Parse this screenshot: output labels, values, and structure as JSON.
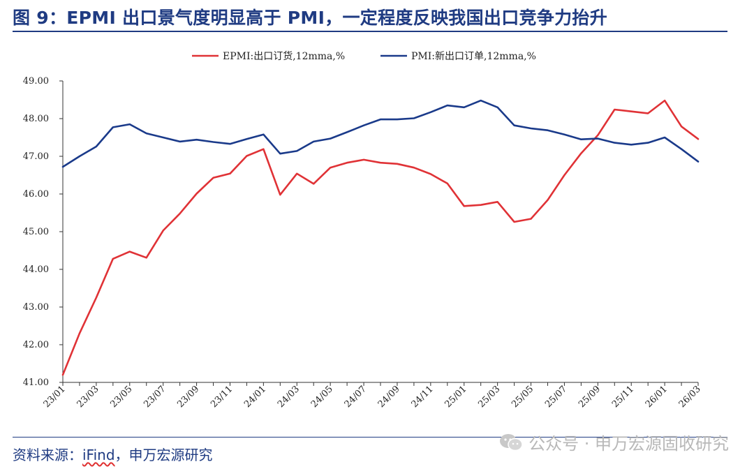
{
  "title": "图 9：EPMI 出口景气度明显高于 PMI，一定程度反映我国出口竞争力抬升",
  "source": {
    "prefix": "资料来源：",
    "ifind": "iFind",
    "suffix": "，申万宏源研究"
  },
  "watermark": "公众号 · 申万宏源固收研究",
  "colors": {
    "title": "#1f3b82",
    "epmi": "#e03236",
    "pmi": "#1a3a8a",
    "axis": "#333333"
  },
  "chart_data": {
    "type": "line",
    "title": "",
    "xlabel": "",
    "ylabel": "",
    "ylim": [
      41,
      49
    ],
    "yticks": [
      "41.00",
      "42.00",
      "43.00",
      "44.00",
      "45.00",
      "46.00",
      "47.00",
      "48.00",
      "49.00"
    ],
    "grid": false,
    "legend_position": "top-center",
    "x": [
      "23/01",
      "23/02",
      "23/03",
      "23/04",
      "23/05",
      "23/06",
      "23/07",
      "23/08",
      "23/09",
      "23/10",
      "23/11",
      "23/12",
      "24/01",
      "24/02",
      "24/03",
      "24/04",
      "24/05",
      "24/06",
      "24/07",
      "24/08",
      "24/09",
      "24/10",
      "24/11",
      "24/12",
      "25/01",
      "25/02",
      "25/03",
      "25/04",
      "25/05",
      "25/06",
      "25/07",
      "25/08",
      "25/09",
      "25/10",
      "25/11",
      "25/12",
      "26/01",
      "26/02",
      "26/03"
    ],
    "xtick_labels": [
      "23/01",
      "23/03",
      "23/05",
      "23/07",
      "23/09",
      "23/11",
      "24/01",
      "24/03",
      "24/05",
      "24/07",
      "24/09",
      "24/11",
      "25/01",
      "25/03",
      "25/05",
      "25/07",
      "25/09",
      "25/11",
      "26/01",
      "26/03"
    ],
    "series": [
      {
        "name": "EPMI:出口订货,12mma,%",
        "color": "#e03236",
        "values": [
          41.2,
          42.3,
          43.25,
          44.28,
          44.47,
          44.31,
          45.03,
          45.48,
          46.01,
          46.43,
          46.54,
          47.01,
          47.19,
          45.98,
          46.54,
          46.27,
          46.7,
          46.83,
          46.91,
          46.83,
          46.8,
          46.7,
          46.53,
          46.28,
          45.68,
          45.71,
          45.79,
          45.26,
          45.34,
          45.84,
          46.5,
          47.08,
          47.56,
          48.24,
          48.19,
          48.14,
          48.48,
          47.79,
          47.46
        ]
      },
      {
        "name": "PMI:新出口订单,12mma,%",
        "color": "#1a3a8a",
        "values": [
          46.72,
          47.0,
          47.26,
          47.77,
          47.85,
          47.61,
          47.5,
          47.39,
          47.44,
          47.38,
          47.33,
          47.46,
          47.58,
          47.07,
          47.14,
          47.39,
          47.47,
          47.64,
          47.82,
          47.98,
          47.98,
          48.01,
          48.17,
          48.35,
          48.3,
          48.48,
          48.3,
          47.82,
          47.74,
          47.69,
          47.58,
          47.45,
          47.47,
          47.36,
          47.31,
          47.36,
          47.5,
          47.19,
          46.86
        ]
      }
    ]
  }
}
